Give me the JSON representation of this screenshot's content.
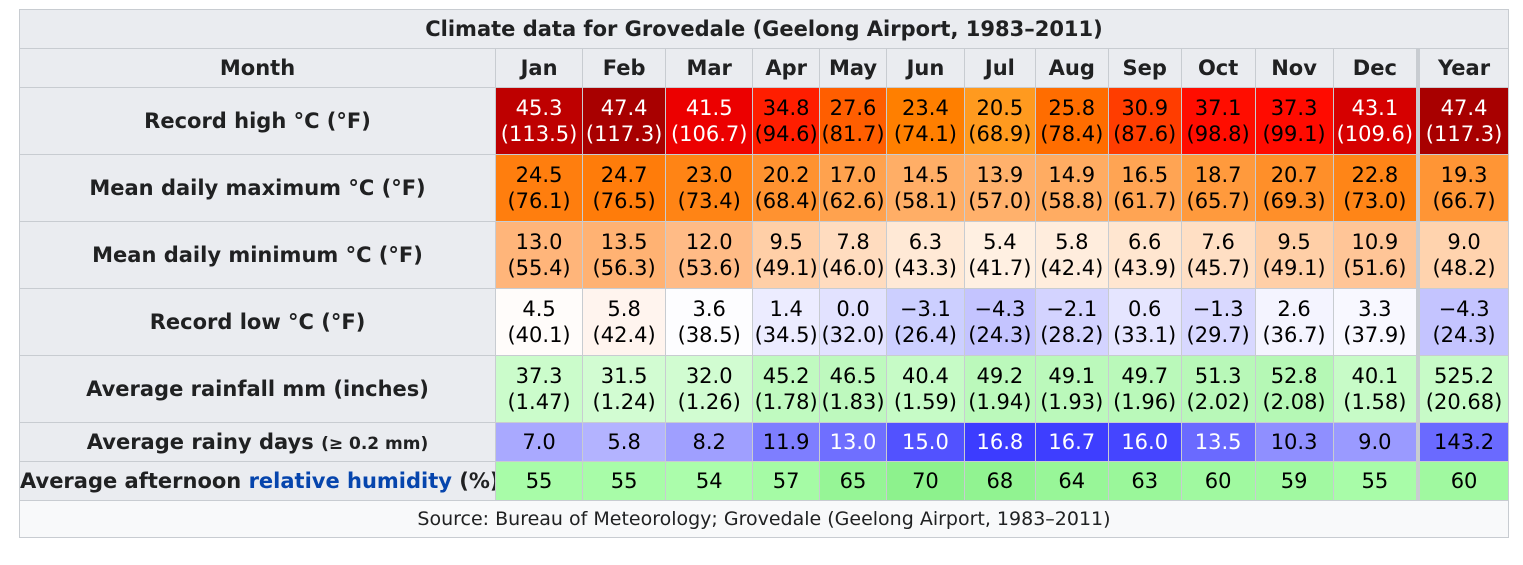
{
  "caption": "Climate data for Grovedale (Geelong Airport, 1983–2011)",
  "header": {
    "month_label": "Month",
    "months": [
      "Jan",
      "Feb",
      "Mar",
      "Apr",
      "May",
      "Jun",
      "Jul",
      "Aug",
      "Sep",
      "Oct",
      "Nov",
      "Dec",
      "Year"
    ]
  },
  "rows": {
    "record_high": {
      "label": "Record high °C (°F)",
      "values": [
        "45.3",
        "47.4",
        "41.5",
        "34.8",
        "27.6",
        "23.4",
        "20.5",
        "25.8",
        "30.9",
        "37.1",
        "37.3",
        "43.1",
        "47.4"
      ],
      "sub_values": [
        "(113.5)",
        "(117.3)",
        "(106.7)",
        "(94.6)",
        "(81.7)",
        "(74.1)",
        "(68.9)",
        "(78.4)",
        "(87.6)",
        "(98.8)",
        "(99.1)",
        "(109.6)",
        "(117.3)"
      ],
      "bg": [
        "#be0000",
        "#a80000",
        "#ec0000",
        "#ff1e00",
        "#ff5e00",
        "#ff7f00",
        "#ff9a1f",
        "#ff6d00",
        "#ff3d00",
        "#ff0d00",
        "#ff0b00",
        "#d60000",
        "#a80000"
      ],
      "fg": [
        "#ffffff",
        "#ffffff",
        "#ffffff",
        "#000000",
        "#000000",
        "#000000",
        "#000000",
        "#000000",
        "#000000",
        "#000000",
        "#000000",
        "#ffffff",
        "#ffffff"
      ]
    },
    "mean_max": {
      "label": "Mean daily maximum °C (°F)",
      "values": [
        "24.5",
        "24.7",
        "23.0",
        "20.2",
        "17.0",
        "14.5",
        "13.9",
        "14.9",
        "16.5",
        "18.7",
        "20.7",
        "22.8",
        "19.3"
      ],
      "sub_values": [
        "(76.1)",
        "(76.5)",
        "(73.4)",
        "(68.4)",
        "(62.6)",
        "(58.1)",
        "(57.0)",
        "(58.8)",
        "(61.7)",
        "(65.7)",
        "(69.3)",
        "(73.0)",
        "(66.7)"
      ],
      "bg": [
        "#ff7e0e",
        "#ff7c0a",
        "#ff8415",
        "#ff9230",
        "#ffa24e",
        "#ffae66",
        "#ffb16c",
        "#ffac62",
        "#ffa453",
        "#ff9a3d",
        "#ff8f29",
        "#ff8517",
        "#ff9535"
      ],
      "fg": [
        "#000000",
        "#000000",
        "#000000",
        "#000000",
        "#000000",
        "#000000",
        "#000000",
        "#000000",
        "#000000",
        "#000000",
        "#000000",
        "#000000",
        "#000000"
      ]
    },
    "mean_min": {
      "label": "Mean daily minimum °C (°F)",
      "values": [
        "13.0",
        "13.5",
        "12.0",
        "9.5",
        "7.8",
        "6.3",
        "5.4",
        "5.8",
        "6.6",
        "7.6",
        "9.5",
        "10.9",
        "9.0"
      ],
      "sub_values": [
        "(55.4)",
        "(56.3)",
        "(53.6)",
        "(49.1)",
        "(46.0)",
        "(43.3)",
        "(41.7)",
        "(42.4)",
        "(43.9)",
        "(45.7)",
        "(49.1)",
        "(51.6)",
        "(48.2)"
      ],
      "bg": [
        "#ffb57a",
        "#ffb273",
        "#ffbb86",
        "#ffcfa7",
        "#ffdcbf",
        "#ffe9d6",
        "#fff0e2",
        "#ffeddd",
        "#ffe6d0",
        "#ffdfc4",
        "#ffcfa7",
        "#ffc597",
        "#ffd3ae"
      ],
      "fg": [
        "#000000",
        "#000000",
        "#000000",
        "#000000",
        "#000000",
        "#000000",
        "#000000",
        "#000000",
        "#000000",
        "#000000",
        "#000000",
        "#000000",
        "#000000"
      ]
    },
    "record_low": {
      "label": "Record low °C (°F)",
      "values": [
        "4.5",
        "5.8",
        "3.6",
        "1.4",
        "0.0",
        "−3.1",
        "−4.3",
        "−2.1",
        "0.6",
        "−1.3",
        "2.6",
        "3.3",
        "−4.3"
      ],
      "sub_values": [
        "(40.1)",
        "(42.4)",
        "(38.5)",
        "(34.5)",
        "(32.0)",
        "(26.4)",
        "(24.3)",
        "(28.2)",
        "(33.1)",
        "(29.7)",
        "(36.7)",
        "(37.9)",
        "(24.3)"
      ],
      "bg": [
        "#fffcfa",
        "#fff4ee",
        "#fdfdff",
        "#ececff",
        "#e2e2ff",
        "#cccfff",
        "#c4c4ff",
        "#d3d3ff",
        "#e5e5ff",
        "#d8d8ff",
        "#f4f4ff",
        "#f8f8ff",
        "#c4c4ff"
      ],
      "fg": [
        "#000000",
        "#000000",
        "#000000",
        "#000000",
        "#000000",
        "#000000",
        "#000000",
        "#000000",
        "#000000",
        "#000000",
        "#000000",
        "#000000",
        "#000000"
      ]
    },
    "rainfall": {
      "label": "Average rainfall mm (inches)",
      "values": [
        "37.3",
        "31.5",
        "32.0",
        "45.2",
        "46.5",
        "40.4",
        "49.2",
        "49.1",
        "49.7",
        "51.3",
        "52.8",
        "40.1",
        "525.2"
      ],
      "sub_values": [
        "(1.47)",
        "(1.24)",
        "(1.26)",
        "(1.78)",
        "(1.83)",
        "(1.59)",
        "(1.94)",
        "(1.93)",
        "(1.96)",
        "(2.02)",
        "(2.08)",
        "(1.58)",
        "(20.68)"
      ],
      "bg": [
        "#cbfccb",
        "#d2fcd2",
        "#d1fcd1",
        "#c0fac0",
        "#bef9be",
        "#c6fbc6",
        "#bbf9bb",
        "#bbf9bb",
        "#baf9ba",
        "#b8f8b8",
        "#b5f8b5",
        "#c7fbc7",
        "#c7fbc7"
      ],
      "fg": [
        "#000000",
        "#000000",
        "#000000",
        "#000000",
        "#000000",
        "#000000",
        "#000000",
        "#000000",
        "#000000",
        "#000000",
        "#000000",
        "#000000",
        "#000000"
      ]
    },
    "rainy_days": {
      "label": "Average rainy days",
      "label_note": "(≥ 0.2 mm)",
      "values": [
        "7.0",
        "5.8",
        "8.2",
        "11.9",
        "13.0",
        "15.0",
        "16.8",
        "16.7",
        "16.0",
        "13.5",
        "10.3",
        "9.0",
        "143.2"
      ],
      "bg": [
        "#a9a9ff",
        "#b3b3ff",
        "#9f9fff",
        "#7e7eff",
        "#6f6fff",
        "#5252ff",
        "#3c3cff",
        "#3e3eff",
        "#4545ff",
        "#6a6aff",
        "#8f8fff",
        "#9a9aff",
        "#6a6aff"
      ],
      "fg": [
        "#000000",
        "#000000",
        "#000000",
        "#000000",
        "#ffffff",
        "#ffffff",
        "#ffffff",
        "#ffffff",
        "#ffffff",
        "#ffffff",
        "#000000",
        "#000000",
        "#000000"
      ]
    },
    "humidity": {
      "label_prefix": "Average afternoon",
      "label_link": "relative humidity",
      "label_suffix": "(%)",
      "values": [
        "55",
        "55",
        "54",
        "57",
        "65",
        "70",
        "68",
        "64",
        "63",
        "60",
        "59",
        "55",
        "60"
      ],
      "bg": [
        "#a8fca8",
        "#a8fca8",
        "#abfdab",
        "#a5fba5",
        "#96f596",
        "#8df28d",
        "#91f391",
        "#98f698",
        "#9af79a",
        "#a0f9a0",
        "#a1f9a1",
        "#a8fca8",
        "#a0f9a0"
      ],
      "fg": [
        "#000000",
        "#000000",
        "#000000",
        "#000000",
        "#000000",
        "#000000",
        "#000000",
        "#000000",
        "#000000",
        "#000000",
        "#000000",
        "#000000",
        "#000000"
      ]
    }
  },
  "source": "Source: Bureau of Meteorology; Grovedale (Geelong Airport, 1983–2011)",
  "colors": {
    "header_bg": "#eaecf0",
    "border": "#c8ccd1",
    "link": "#0645ad"
  }
}
